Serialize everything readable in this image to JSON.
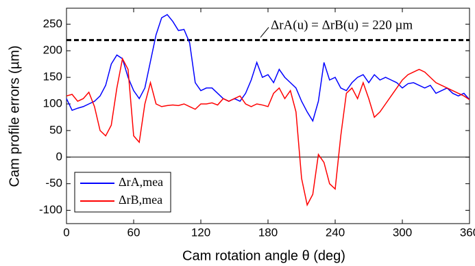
{
  "chart_data": {
    "type": "line",
    "xlabel": "Cam rotation angle θ (deg)",
    "ylabel": "Cam profile errors (µm)",
    "annotation": "ΔrA(u) = ΔrB(u) = 220 µm",
    "threshold": 220,
    "x": [
      0,
      5,
      10,
      15,
      20,
      25,
      30,
      35,
      40,
      45,
      50,
      55,
      60,
      65,
      70,
      75,
      80,
      85,
      90,
      95,
      100,
      105,
      110,
      115,
      120,
      125,
      130,
      135,
      140,
      145,
      150,
      155,
      160,
      165,
      170,
      175,
      180,
      185,
      190,
      195,
      200,
      205,
      210,
      215,
      220,
      225,
      230,
      235,
      240,
      245,
      250,
      255,
      260,
      265,
      270,
      275,
      280,
      285,
      290,
      295,
      300,
      305,
      310,
      315,
      320,
      325,
      330,
      335,
      340,
      345,
      350,
      355,
      360
    ],
    "series": [
      {
        "name": "ΔrA,mea",
        "color": "#0000ff",
        "values": [
          110,
          88,
          92,
          95,
          100,
          105,
          115,
          135,
          175,
          192,
          185,
          150,
          125,
          110,
          130,
          180,
          230,
          262,
          268,
          255,
          238,
          240,
          215,
          140,
          125,
          130,
          130,
          120,
          110,
          105,
          110,
          105,
          120,
          145,
          178,
          150,
          155,
          140,
          165,
          150,
          140,
          130,
          105,
          85,
          68,
          105,
          178,
          145,
          150,
          130,
          125,
          140,
          150,
          155,
          140,
          155,
          145,
          150,
          145,
          140,
          130,
          138,
          140,
          135,
          130,
          135,
          120,
          125,
          130,
          120,
          115,
          120,
          108
        ]
      },
      {
        "name": "ΔrB,mea",
        "color": "#ff0000",
        "values": [
          115,
          118,
          105,
          110,
          122,
          95,
          50,
          40,
          60,
          130,
          185,
          165,
          40,
          28,
          100,
          140,
          100,
          95,
          97,
          98,
          97,
          100,
          95,
          90,
          100,
          100,
          102,
          98,
          110,
          105,
          110,
          115,
          100,
          95,
          100,
          98,
          95,
          120,
          130,
          110,
          125,
          85,
          -40,
          -90,
          -70,
          5,
          -10,
          -50,
          -60,
          40,
          120,
          130,
          110,
          140,
          110,
          75,
          85,
          100,
          115,
          130,
          145,
          155,
          160,
          165,
          160,
          150,
          140,
          135,
          130,
          125,
          120,
          115,
          108
        ]
      }
    ],
    "xlim": [
      0,
      360
    ],
    "xticks": [
      0,
      60,
      120,
      180,
      240,
      300,
      360
    ],
    "ylim": [
      -125,
      280
    ],
    "yticks": [
      -100,
      -50,
      0,
      50,
      100,
      150,
      200,
      250
    ],
    "legend": "lower-left"
  }
}
